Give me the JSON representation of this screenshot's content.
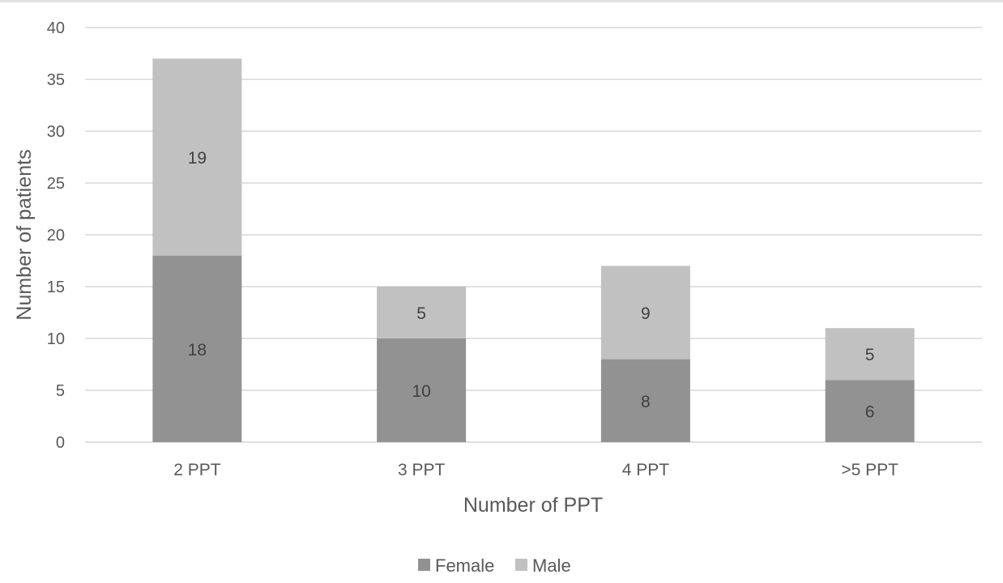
{
  "chart_data": {
    "type": "bar",
    "stacked": true,
    "categories": [
      "2 PPT",
      "3 PPT",
      "4 PPT",
      ">5 PPT"
    ],
    "series": [
      {
        "name": "Female",
        "values": [
          18,
          10,
          8,
          6
        ],
        "color": "#929292"
      },
      {
        "name": "Male",
        "values": [
          19,
          5,
          9,
          5
        ],
        "color": "#c1c1c1"
      }
    ],
    "title": "",
    "xlabel": "Number of PPT",
    "ylabel": "Number of patients",
    "ylim": [
      0,
      40
    ],
    "yticks": [
      0,
      5,
      10,
      15,
      20,
      25,
      30,
      35,
      40
    ],
    "grid": true,
    "data_labels": true,
    "legend_position": "bottom",
    "gridline_color": "#d9d9d9",
    "text_color": "#595959"
  }
}
